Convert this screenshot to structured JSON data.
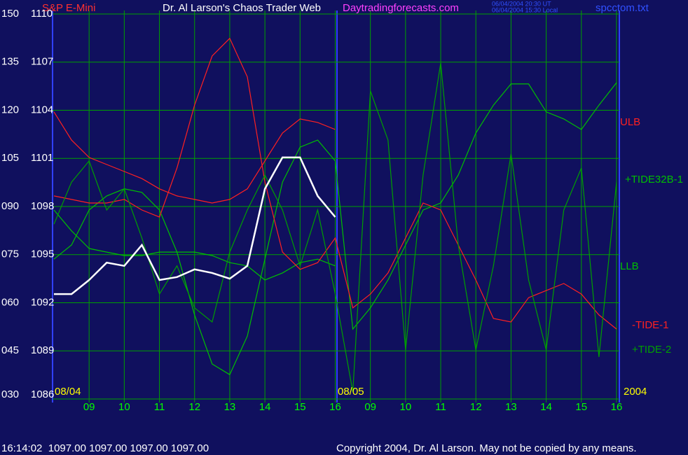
{
  "chart_data": {
    "type": "line",
    "title": "Dr. Al Larson's Chaos Trader Web",
    "subtitle": "S&P E-Mini",
    "site": "Daytradingforecasts.com",
    "timestamp_ut": "06/04/2004 20:30 UT",
    "timestamp_local": "06/04/2004 15:30 Local",
    "file": "spcctom.txt",
    "date_labels": [
      "08/04",
      "08/05",
      "2004"
    ],
    "status": "16:14:02  1097.00 1097.00 1097.00 1097.00",
    "copyright": "Copyright 2004, Dr. Al Larson. May not be copied by any means.",
    "grid": true,
    "grid_color": "#00a000",
    "xlim": [
      0,
      16.2
    ],
    "xticks": [
      {
        "value": 1,
        "label": "09"
      },
      {
        "value": 2,
        "label": "10"
      },
      {
        "value": 3,
        "label": "11"
      },
      {
        "value": 4,
        "label": "12"
      },
      {
        "value": 5,
        "label": "13"
      },
      {
        "value": 6,
        "label": "14"
      },
      {
        "value": 7,
        "label": "15"
      },
      {
        "value": 8,
        "label": "16"
      },
      {
        "value": 9,
        "label": "09"
      },
      {
        "value": 10,
        "label": "10"
      },
      {
        "value": 11,
        "label": "11"
      },
      {
        "value": 12,
        "label": "12"
      },
      {
        "value": 13,
        "label": "13"
      },
      {
        "value": 14,
        "label": "14"
      },
      {
        "value": 15,
        "label": "15"
      },
      {
        "value": 16,
        "label": "16"
      }
    ],
    "ylim": [
      30,
      150
    ],
    "yticks": [
      150,
      135,
      120,
      105,
      {
        "value": 90,
        "label": "090"
      },
      {
        "value": 75,
        "label": "075"
      },
      {
        "value": 60,
        "label": "060"
      },
      {
        "value": 45,
        "label": "045"
      },
      {
        "value": 30,
        "label": "030"
      }
    ],
    "y2lim": [
      1086,
      1110
    ],
    "y2ticks": [
      1110,
      1107,
      1104,
      1101,
      1098,
      1095,
      1092,
      1089,
      1086
    ],
    "x": [
      0,
      0.5,
      1,
      1.5,
      2,
      2.5,
      3,
      3.5,
      4,
      4.5,
      5,
      5.5,
      6,
      6.5,
      7,
      7.5,
      8,
      8.5,
      9,
      9.5,
      10,
      10.5,
      11,
      11.5,
      12,
      12.5,
      13,
      13.5,
      14,
      14.5,
      15,
      15.5,
      16
    ],
    "series": [
      {
        "name": "ULB",
        "color": "#ff2020",
        "values": [
          119.5,
          110.7,
          105.3,
          103.1,
          100.9,
          98.7,
          95.5,
          93.3,
          92.2,
          91.1,
          92.2,
          95.5,
          104.2,
          112.9,
          117.3,
          116.2,
          114,
          null,
          null,
          null,
          null,
          null,
          null,
          null,
          null,
          null,
          null,
          null,
          null,
          null,
          null,
          null,
          null
        ]
      },
      {
        "name": "+TIDE32B-1",
        "color": "#00c000",
        "values": [
          73.6,
          78,
          88.9,
          93.3,
          95.5,
          94.4,
          88.9,
          75.8,
          56.2,
          40.9,
          37.6,
          49.6,
          73.6,
          97.6,
          108.5,
          110.7,
          104.2,
          51.8,
          58.4,
          67.1,
          78,
          88.9,
          91.1,
          99.8,
          112.9,
          121.6,
          128.2,
          128.2,
          119.5,
          117.3,
          114,
          121.6,
          128.6
        ]
      },
      {
        "name": "LLB",
        "color": "#00c000",
        "values": [
          88.9,
          82.4,
          76.9,
          75.8,
          74.7,
          74.7,
          75.8,
          75.8,
          75.8,
          74.7,
          72.5,
          71.5,
          67.1,
          69.3,
          72.5,
          73.6,
          71.5,
          null,
          null,
          null,
          null,
          null,
          null,
          null,
          null,
          null,
          null,
          null,
          null,
          null,
          null,
          null,
          null
        ]
      },
      {
        "name": "-TIDE-1",
        "color": "#ff2020",
        "values": [
          93.3,
          92.2,
          91.1,
          91.1,
          92.2,
          88.9,
          86.7,
          102,
          121.6,
          136.9,
          142.4,
          130.4,
          97.6,
          75.8,
          70.4,
          72.5,
          80.2,
          58.4,
          62.7,
          69.3,
          80.2,
          91.1,
          88.9,
          78,
          67.1,
          55.1,
          54,
          61.6,
          63.8,
          66,
          62.7,
          56.2,
          51.8
        ]
      },
      {
        "name": "+TIDE-2",
        "color": "#00a000",
        "values": [
          84.5,
          97.6,
          104.2,
          88.9,
          95.5,
          80.2,
          62.7,
          71.5,
          58.4,
          54,
          75.8,
          88.9,
          99.8,
          88.9,
          71.5,
          88.9,
          62.7,
          32.2,
          126,
          110.7,
          45.3,
          99.8,
          134.7,
          78,
          45.3,
          71.5,
          106.4,
          67.1,
          45.3,
          88.9,
          102,
          43.1,
          97.6
        ]
      },
      {
        "name": "S&P E-Mini",
        "color": "#ffffff",
        "values": [
          62.7,
          62.7,
          67.1,
          72.5,
          71.5,
          78,
          67.1,
          68,
          70.4,
          69.3,
          67.5,
          71.5,
          95.5,
          105.3,
          105.3,
          93.3,
          86.7,
          null,
          null,
          null,
          null,
          null,
          null,
          null,
          null,
          null,
          null,
          null,
          null,
          null,
          null,
          null,
          null
        ]
      }
    ]
  }
}
